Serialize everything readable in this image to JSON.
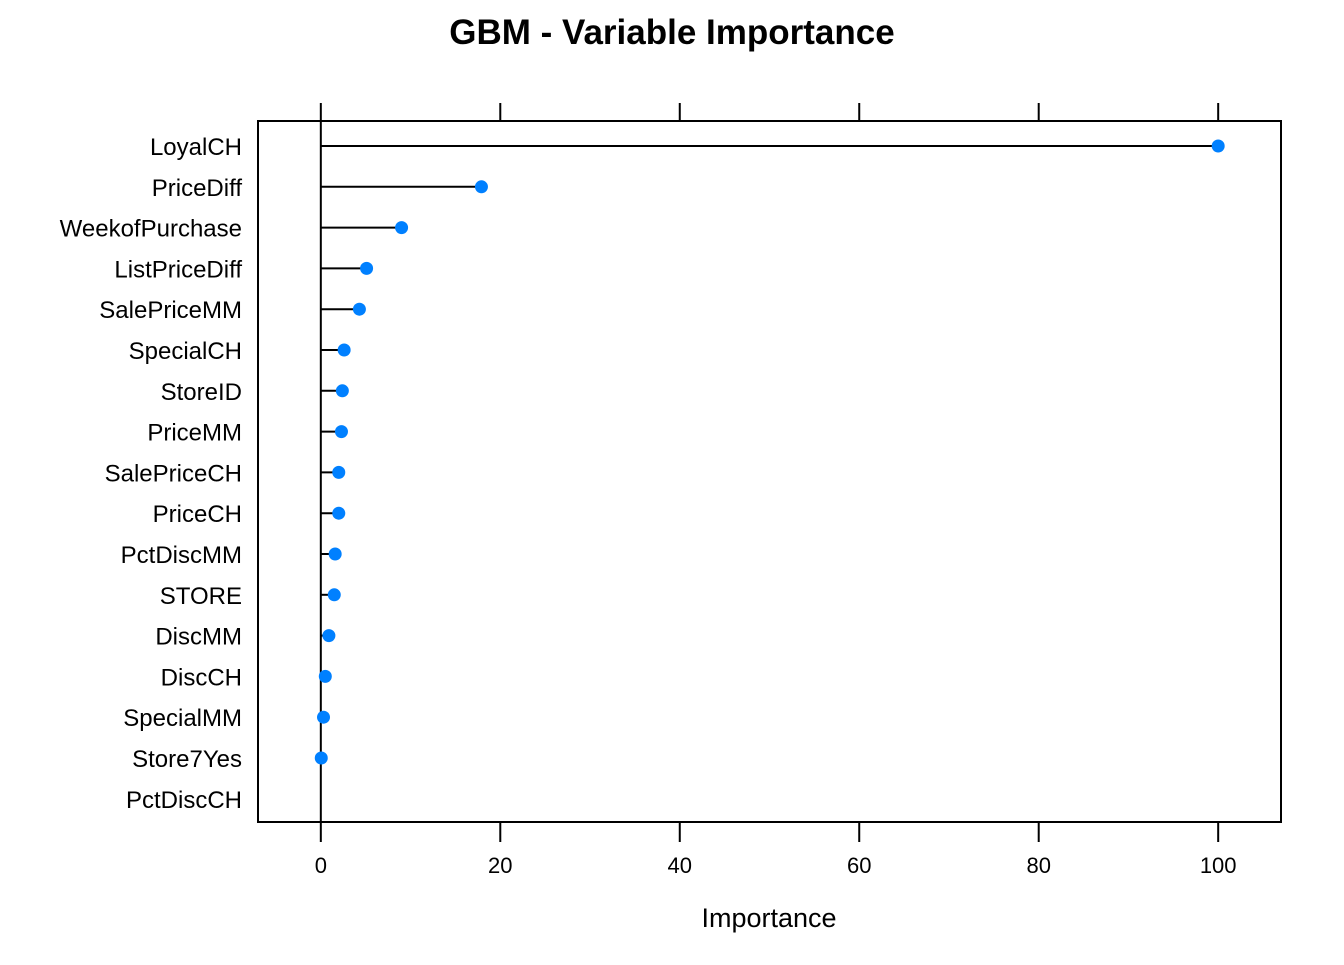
{
  "chart_data": {
    "type": "dot",
    "title": "GBM - Variable Importance",
    "xlabel": "Importance",
    "ylabel": "",
    "xlim": [
      -7,
      107
    ],
    "xticks": [
      0,
      20,
      40,
      60,
      80,
      100
    ],
    "categories": [
      "LoyalCH",
      "PriceDiff",
      "WeekofPurchase",
      "ListPriceDiff",
      "SalePriceMM",
      "SpecialCH",
      "StoreID",
      "PriceMM",
      "SalePriceCH",
      "PriceCH",
      "PctDiscMM",
      "STORE",
      "DiscMM",
      "DiscCH",
      "SpecialMM",
      "Store7Yes",
      "PctDiscCH"
    ],
    "values": [
      100,
      17.9,
      9.0,
      5.1,
      4.3,
      2.6,
      2.4,
      2.3,
      2.0,
      2.0,
      1.6,
      1.5,
      0.9,
      0.5,
      0.3,
      0.05,
      null
    ],
    "grid": false,
    "point_color": "#0080ff",
    "line_color": "#000000"
  }
}
